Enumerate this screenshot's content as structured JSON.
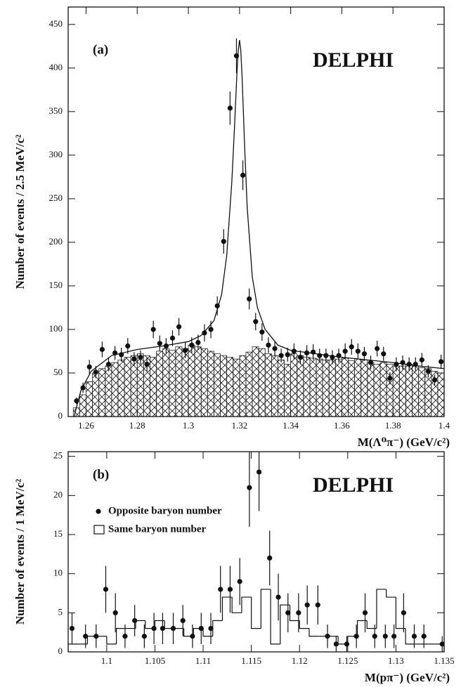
{
  "chart_data": [
    {
      "type": "scatter",
      "ylabel": "Number of events / 2.5 MeV/c²",
      "xlabel": "M(Λ⁰π⁻)  (GeV/c²)",
      "panel_label": "(a)",
      "annotation": "DELPHI",
      "xlim": [
        1.253,
        1.4
      ],
      "ylim": [
        0,
        470
      ],
      "xticks": [
        1.26,
        1.28,
        1.3,
        1.32,
        1.34,
        1.36,
        1.38,
        1.4
      ],
      "yticks": [
        0,
        50,
        100,
        150,
        200,
        250,
        300,
        350,
        400,
        450
      ],
      "color": "#111111",
      "points": {
        "x": [
          1.2563,
          1.2588,
          1.2613,
          1.2638,
          1.2663,
          1.2688,
          1.2713,
          1.2738,
          1.2763,
          1.2788,
          1.2813,
          1.2838,
          1.2863,
          1.2888,
          1.2913,
          1.2938,
          1.2963,
          1.2988,
          1.3013,
          1.3038,
          1.3063,
          1.3088,
          1.3113,
          1.3138,
          1.3163,
          1.3188,
          1.3213,
          1.3238,
          1.3263,
          1.3288,
          1.3313,
          1.3338,
          1.3363,
          1.3388,
          1.3413,
          1.3438,
          1.3463,
          1.3488,
          1.3513,
          1.3538,
          1.3563,
          1.3588,
          1.3613,
          1.3638,
          1.3663,
          1.3688,
          1.3713,
          1.3738,
          1.3763,
          1.3788,
          1.3813,
          1.3838,
          1.3863,
          1.3888,
          1.3913,
          1.3938,
          1.3963,
          1.3988
        ],
        "values": [
          18,
          33,
          57,
          51,
          77,
          60,
          73,
          71,
          81,
          66,
          68,
          60,
          100,
          84,
          81,
          90,
          103,
          76,
          82,
          85,
          96,
          100,
          127,
          201,
          354,
          414,
          277,
          135,
          109,
          97,
          82,
          78,
          70,
          71,
          75,
          68,
          73,
          74,
          70,
          70,
          68,
          70,
          75,
          80,
          75,
          72,
          62,
          78,
          72,
          44,
          60,
          62,
          60,
          60,
          65,
          52,
          42,
          63
        ],
        "errors": [
          4,
          6,
          8,
          7,
          9,
          8,
          8,
          8,
          9,
          8,
          8,
          8,
          10,
          9,
          9,
          9,
          10,
          9,
          9,
          9,
          10,
          10,
          11,
          14,
          19,
          20,
          17,
          12,
          10,
          10,
          9,
          9,
          8,
          8,
          9,
          8,
          9,
          9,
          8,
          8,
          8,
          8,
          9,
          9,
          9,
          8,
          8,
          9,
          8,
          7,
          8,
          8,
          8,
          8,
          8,
          7,
          6,
          8
        ]
      },
      "histogram": {
        "hatch": true,
        "bins": [
          1.255,
          1.2575,
          1.26,
          1.2625,
          1.265,
          1.2675,
          1.27,
          1.2725,
          1.275,
          1.2775,
          1.28,
          1.2825,
          1.285,
          1.2875,
          1.29,
          1.2925,
          1.295,
          1.2975,
          1.3,
          1.3025,
          1.305,
          1.3075,
          1.31,
          1.3125,
          1.315,
          1.3175,
          1.32,
          1.3225,
          1.325,
          1.3275,
          1.33,
          1.3325,
          1.335,
          1.3375,
          1.34,
          1.3425,
          1.345,
          1.3475,
          1.35,
          1.3525,
          1.355,
          1.3575,
          1.36,
          1.3625,
          1.365,
          1.3675,
          1.37,
          1.3725,
          1.375,
          1.3775,
          1.38,
          1.3825,
          1.385,
          1.3875,
          1.39,
          1.3925,
          1.395,
          1.3975,
          1.4
        ],
        "counts": [
          10,
          25,
          40,
          50,
          55,
          58,
          62,
          65,
          68,
          70,
          72,
          70,
          68,
          75,
          78,
          76,
          80,
          78,
          82,
          80,
          78,
          75,
          72,
          70,
          68,
          66,
          70,
          74,
          80,
          78,
          72,
          70,
          65,
          60,
          72,
          70,
          68,
          67,
          66,
          65,
          65,
          66,
          67,
          64,
          66,
          65,
          62,
          60,
          62,
          60,
          58,
          58,
          60,
          58,
          56,
          55,
          52,
          50
        ]
      },
      "fit": {
        "x": [
          1.2553,
          1.258,
          1.262,
          1.27,
          1.28,
          1.29,
          1.3,
          1.305,
          1.31,
          1.313,
          1.315,
          1.317,
          1.318,
          1.319,
          1.3195,
          1.32,
          1.3205,
          1.321,
          1.322,
          1.323,
          1.325,
          1.327,
          1.33,
          1.335,
          1.34,
          1.35,
          1.36,
          1.37,
          1.38,
          1.39,
          1.4
        ],
        "values": [
          0,
          30,
          52,
          70,
          77,
          81,
          86,
          93,
          110,
          140,
          185,
          270,
          330,
          395,
          420,
          432,
          420,
          390,
          310,
          240,
          160,
          125,
          100,
          82,
          76,
          72,
          68,
          65,
          62,
          58,
          55
        ]
      }
    },
    {
      "type": "scatter",
      "ylabel": "Number of events / 1 MeV/c²",
      "xlabel": "M(pπ⁻) (GeV/c²)",
      "panel_label": "(b)",
      "annotation": "DELPHI",
      "xlim": [
        1.096,
        1.135
      ],
      "ylim": [
        0,
        25.6
      ],
      "xticks": [
        1.1,
        1.105,
        1.11,
        1.115,
        1.12,
        1.125,
        1.13,
        1.135
      ],
      "yticks": [
        0,
        5,
        10,
        15,
        20,
        25
      ],
      "color": "#111111",
      "legend": true,
      "points": {
        "name": "Opposite baryon number",
        "x": [
          1.0964,
          1.0978,
          1.0989,
          1.0999,
          1.1009,
          1.1019,
          1.1029,
          1.1039,
          1.1049,
          1.1058,
          1.1069,
          1.1079,
          1.1089,
          1.1098,
          1.1108,
          1.1118,
          1.1128,
          1.1138,
          1.1148,
          1.1158,
          1.1169,
          1.1178,
          1.1188,
          1.1199,
          1.1208,
          1.1219,
          1.1229,
          1.1238,
          1.1249,
          1.1259,
          1.1268,
          1.1278,
          1.1289,
          1.1298,
          1.1308,
          1.1319,
          1.1329,
          1.1348
        ],
        "values": [
          3,
          2,
          2,
          8,
          5,
          2,
          4,
          2,
          3,
          3,
          3,
          4,
          2,
          3,
          3,
          8,
          8,
          9,
          21,
          23,
          12,
          7,
          5,
          5,
          6,
          6,
          2,
          1,
          1,
          2,
          5,
          2,
          2,
          2,
          5,
          2,
          2,
          1
        ],
        "errors": [
          2,
          1.5,
          1.5,
          3,
          2.5,
          1.5,
          2,
          1.5,
          2,
          2,
          2,
          2,
          1.5,
          2,
          2,
          3,
          3,
          3,
          5,
          5,
          3.5,
          3,
          2.5,
          2.5,
          2.5,
          2.5,
          1.5,
          1,
          1,
          1.5,
          2.5,
          1.5,
          1.5,
          1.5,
          2.5,
          1.5,
          1.5,
          1
        ]
      },
      "histogram": {
        "name": "Same baryon number",
        "hatch": false,
        "bins": [
          1.096,
          1.097,
          1.098,
          1.099,
          1.1,
          1.101,
          1.102,
          1.103,
          1.104,
          1.105,
          1.106,
          1.107,
          1.108,
          1.109,
          1.11,
          1.111,
          1.112,
          1.113,
          1.114,
          1.115,
          1.116,
          1.117,
          1.118,
          1.119,
          1.12,
          1.121,
          1.122,
          1.123,
          1.124,
          1.125,
          1.126,
          1.127,
          1.128,
          1.129,
          1.13,
          1.131,
          1.132,
          1.133,
          1.134,
          1.135
        ],
        "counts": [
          1,
          1,
          2,
          2,
          1,
          3,
          3,
          4,
          3,
          4,
          3,
          3,
          2,
          3,
          2,
          4,
          7,
          5,
          7,
          3,
          8,
          1,
          6,
          4,
          3,
          2,
          2,
          2,
          1,
          2,
          4,
          3,
          8,
          7,
          3,
          1,
          1,
          1,
          1
        ]
      }
    }
  ]
}
